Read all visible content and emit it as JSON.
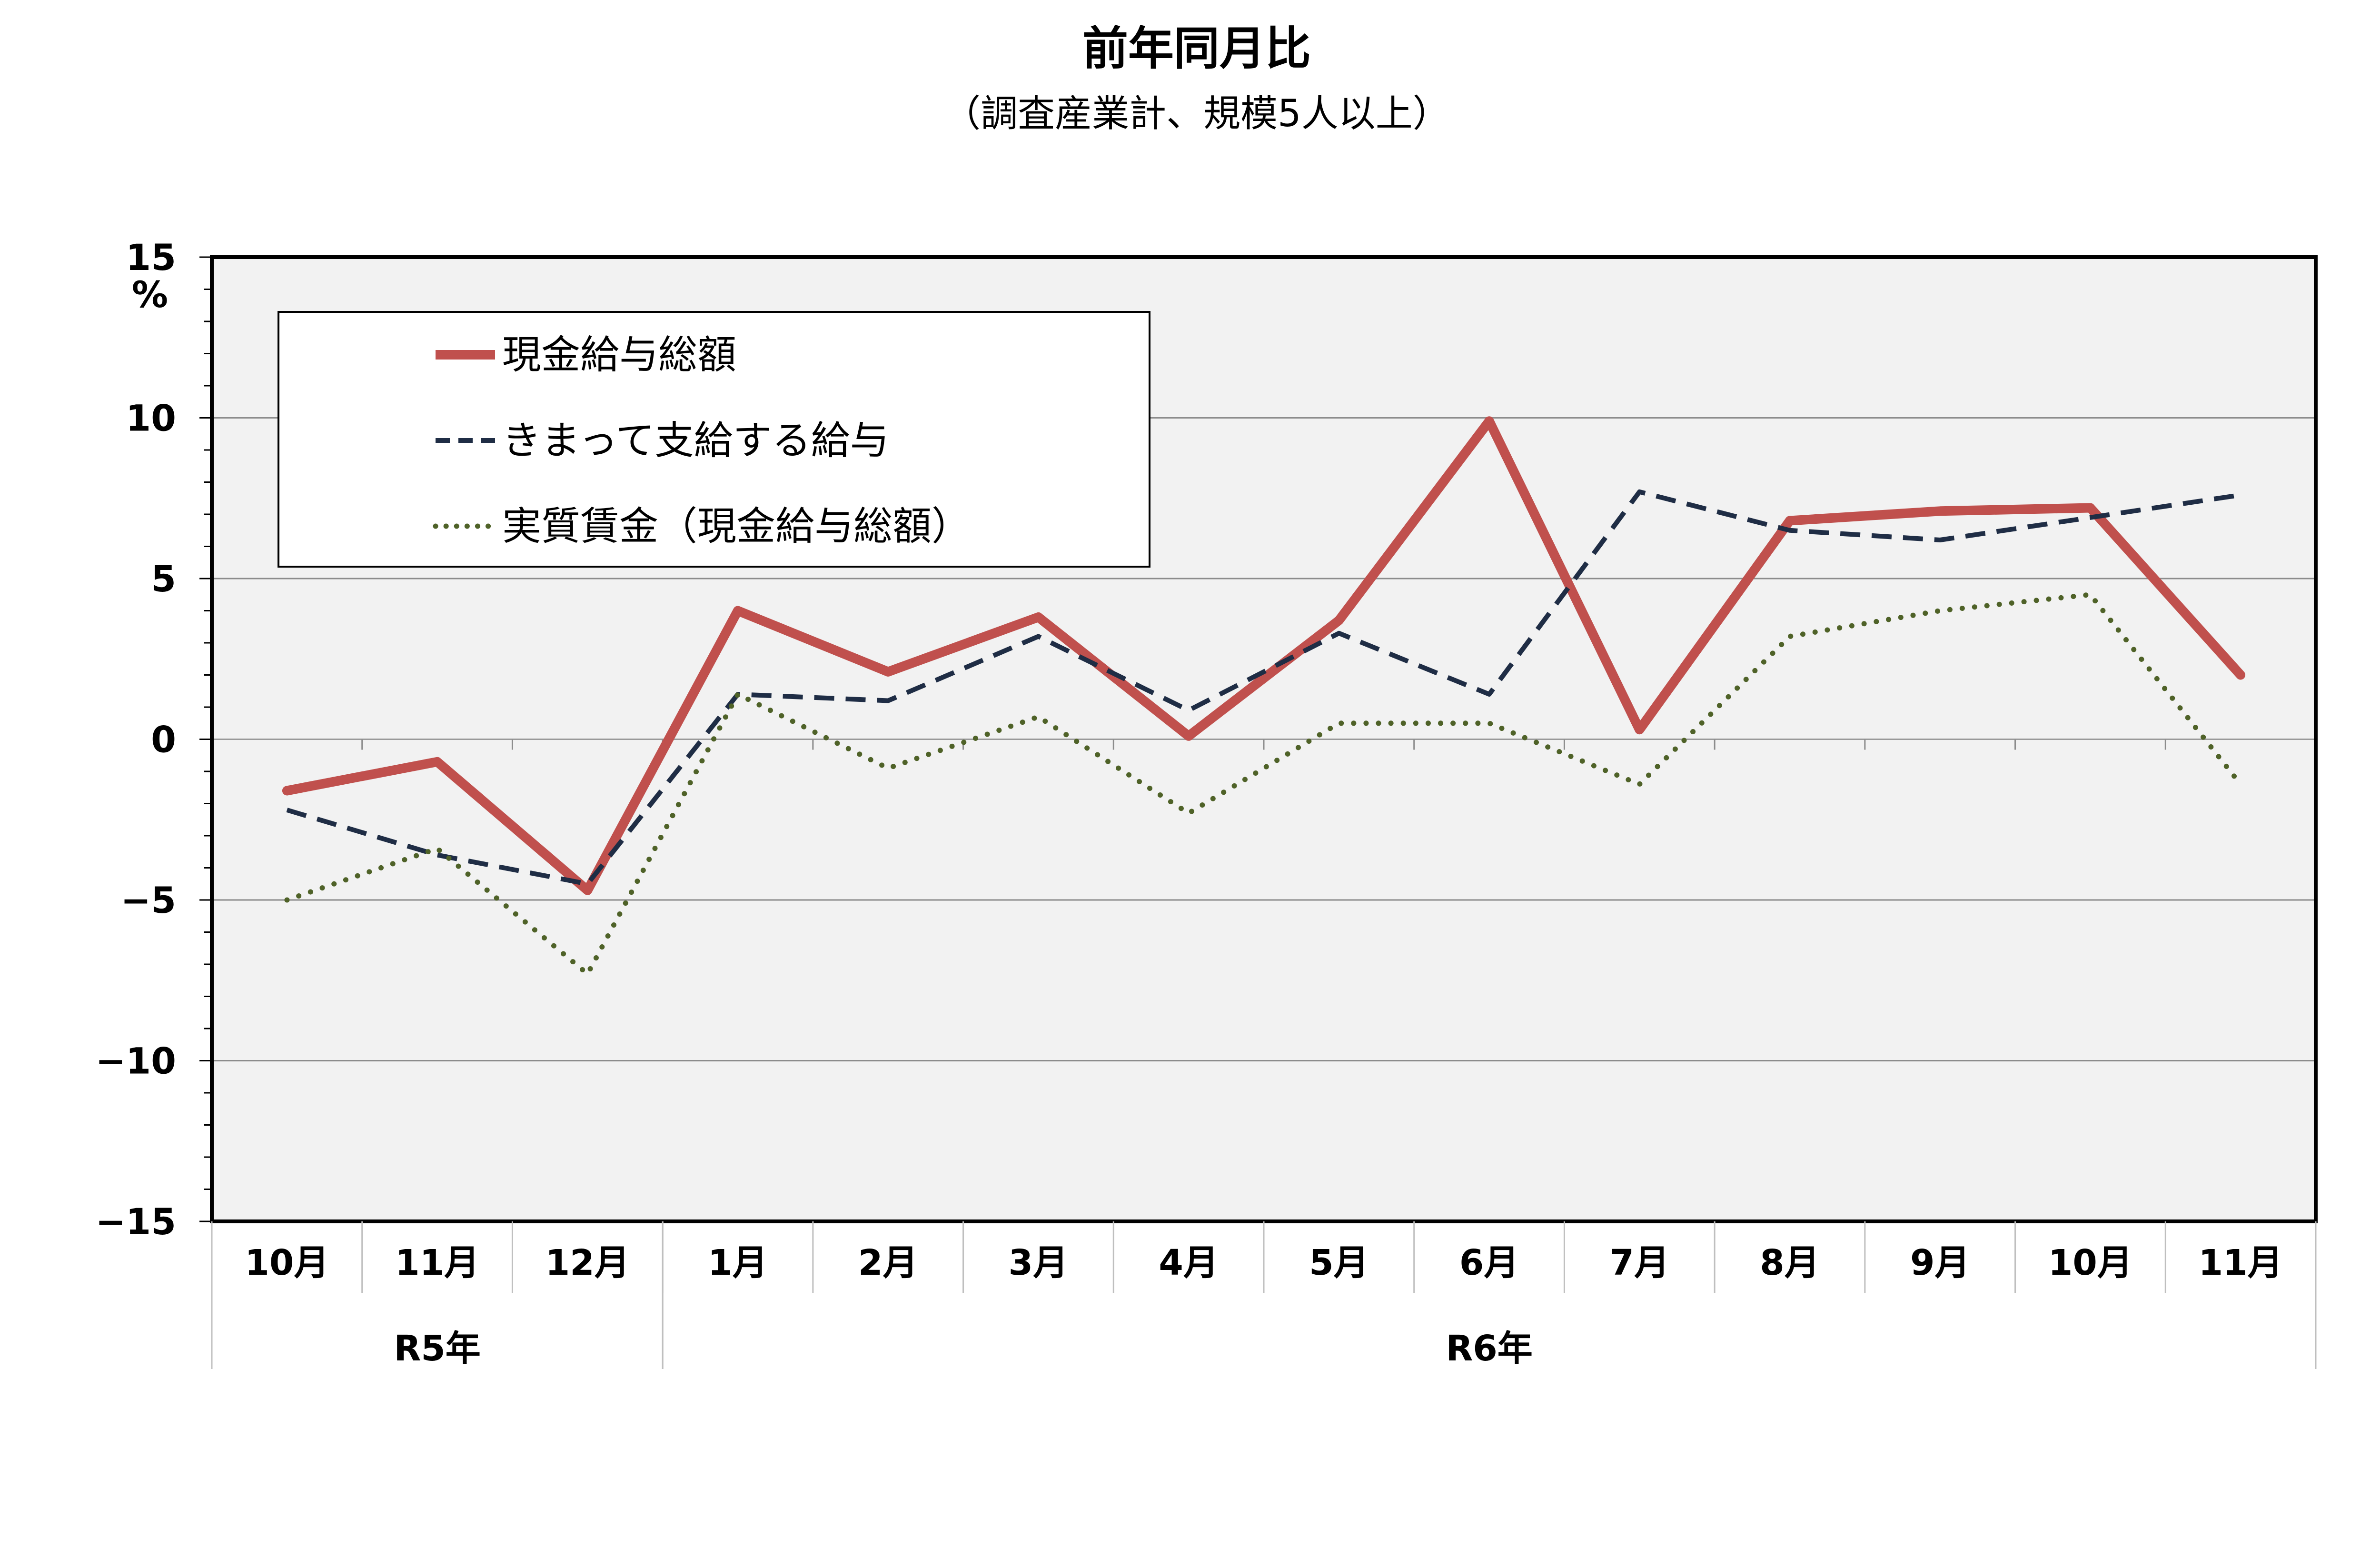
{
  "chart_data": {
    "type": "line",
    "title": "前年同月比",
    "subtitle": "（調査産業計、規模5人以上）",
    "ylabel": "%",
    "ylim": [
      -15,
      15
    ],
    "yticks": [
      "−15",
      "−10",
      "−5",
      "0",
      "5",
      "10",
      "15"
    ],
    "ytick_values": [
      -15,
      -10,
      -5,
      0,
      5,
      10,
      15
    ],
    "grid": true,
    "legend_position": "top-left",
    "categories": [
      "10月",
      "11月",
      "12月",
      "1月",
      "2月",
      "3月",
      "4月",
      "5月",
      "6月",
      "7月",
      "8月",
      "9月",
      "10月",
      "11月"
    ],
    "groups": [
      {
        "label": "R5年",
        "count": 3
      },
      {
        "label": "R6年",
        "count": 11
      }
    ],
    "series": [
      {
        "name": "現金給与総額",
        "color": "#C0504D",
        "style": "solid",
        "values": [
          -1.6,
          -0.7,
          -4.7,
          4.0,
          2.1,
          3.8,
          0.1,
          3.7,
          9.9,
          0.3,
          6.8,
          7.1,
          7.2,
          2.0
        ]
      },
      {
        "name": "きまって支給する給与",
        "color": "#1F2D45",
        "style": "dashed",
        "values": [
          -2.2,
          -3.6,
          -4.5,
          1.4,
          1.2,
          3.2,
          0.9,
          3.3,
          1.4,
          7.7,
          6.5,
          6.2,
          6.9,
          7.6
        ]
      },
      {
        "name": "実質賃金（現金給与総額）",
        "color": "#4F6228",
        "style": "dotted",
        "values": [
          -5.0,
          -3.4,
          -7.3,
          1.4,
          -0.9,
          0.7,
          -2.3,
          0.5,
          0.5,
          -1.4,
          3.2,
          4.0,
          4.5,
          -1.4
        ]
      }
    ]
  }
}
